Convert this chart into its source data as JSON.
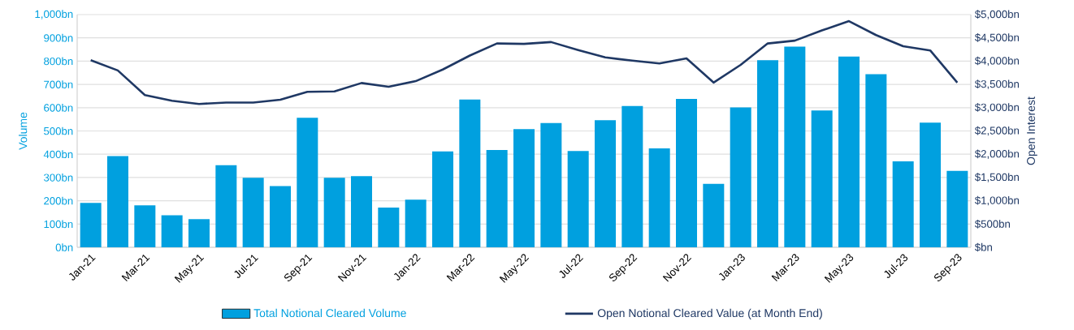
{
  "chart_data": {
    "type": "bar",
    "categories": [
      "Jan-21",
      null,
      "Mar-21",
      null,
      "May-21",
      null,
      "Jul-21",
      null,
      "Sep-21",
      null,
      "Nov-21",
      null,
      "Jan-22",
      null,
      "Mar-22",
      null,
      "May-22",
      null,
      "Jul-22",
      null,
      "Sep-22",
      null,
      "Nov-22",
      null,
      "Jan-23",
      null,
      "Mar-23",
      null,
      "May-23",
      null,
      "Jul-23",
      null,
      "Sep-23"
    ],
    "series": [
      {
        "name": "Total Notional Cleared Volume",
        "color": "#00a0df",
        "values": [
          191,
          392,
          180,
          138,
          121,
          353,
          299,
          263,
          557,
          299,
          306,
          171,
          205,
          412,
          635,
          418,
          508,
          534,
          414,
          546,
          607,
          425,
          638,
          273,
          601,
          804,
          862,
          588,
          820,
          744,
          369,
          536,
          328
        ]
      },
      {
        "name": "Open Notional Cleared Value (at Month End)",
        "type": "line",
        "axis": "y2",
        "color": "#1f3864",
        "values": [
          4020,
          3800,
          3270,
          3150,
          3080,
          3110,
          3110,
          3170,
          3340,
          3350,
          3530,
          3450,
          3570,
          3820,
          4120,
          4380,
          4370,
          4410,
          4240,
          4080,
          4010,
          3950,
          4060,
          3540,
          3920,
          4380,
          4440,
          4660,
          4860,
          4560,
          4320,
          4230,
          3540
        ]
      }
    ],
    "ylabel": "Volume",
    "y2label": "Open Interest",
    "ylim": [
      0,
      1000
    ],
    "yticks": [
      {
        "value": 0,
        "label": "0bn"
      },
      {
        "value": 100,
        "label": "100bn"
      },
      {
        "value": 200,
        "label": "200bn"
      },
      {
        "value": 300,
        "label": "300bn"
      },
      {
        "value": 400,
        "label": "400bn"
      },
      {
        "value": 500,
        "label": "500bn"
      },
      {
        "value": 600,
        "label": "600bn"
      },
      {
        "value": 700,
        "label": "700bn"
      },
      {
        "value": 800,
        "label": "800bn"
      },
      {
        "value": 900,
        "label": "900bn"
      },
      {
        "value": 1000,
        "label": "1,000bn"
      }
    ],
    "y2lim": [
      0,
      5000
    ],
    "y2ticks": [
      {
        "value": 0,
        "label": "$bn"
      },
      {
        "value": 500,
        "label": "$500bn"
      },
      {
        "value": 1000,
        "label": "$1,000bn"
      },
      {
        "value": 1500,
        "label": "$1,500bn"
      },
      {
        "value": 2000,
        "label": "$2,000bn"
      },
      {
        "value": 2500,
        "label": "$2,500bn"
      },
      {
        "value": 3000,
        "label": "$3,000bn"
      },
      {
        "value": 3500,
        "label": "$3,500bn"
      },
      {
        "value": 4000,
        "label": "$4,000bn"
      },
      {
        "value": 4500,
        "label": "$4,500bn"
      },
      {
        "value": 5000,
        "label": "$5,000bn"
      }
    ],
    "grid": "y",
    "legend": "bottom"
  }
}
